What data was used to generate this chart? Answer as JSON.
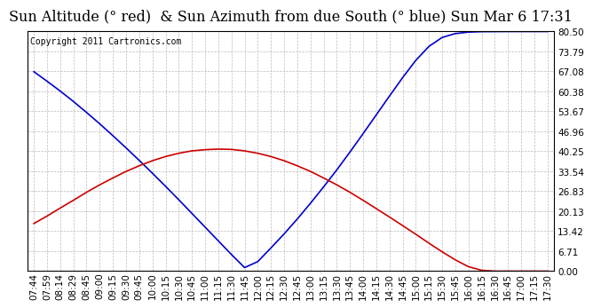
{
  "title": "Sun Altitude (° red)  & Sun Azimuth from due South (° blue) Sun Mar 6 17:31",
  "copyright_text": "Copyright 2011 Cartronics.com",
  "yticks": [
    0.0,
    6.71,
    13.42,
    20.13,
    26.83,
    33.54,
    40.25,
    46.96,
    53.67,
    60.38,
    67.08,
    73.79,
    80.5
  ],
  "ylim": [
    0.0,
    80.5
  ],
  "x_labels": [
    "07:44",
    "07:59",
    "08:14",
    "08:29",
    "08:45",
    "09:00",
    "09:15",
    "09:30",
    "09:45",
    "10:00",
    "10:15",
    "10:30",
    "10:45",
    "11:00",
    "11:15",
    "11:30",
    "11:45",
    "12:00",
    "12:15",
    "12:30",
    "12:45",
    "13:00",
    "13:15",
    "13:30",
    "13:45",
    "14:00",
    "14:15",
    "14:30",
    "14:45",
    "15:00",
    "15:15",
    "15:30",
    "15:45",
    "16:00",
    "16:15",
    "16:30",
    "16:45",
    "17:00",
    "17:15",
    "17:30"
  ],
  "altitude_values": [
    16.0,
    18.5,
    21.2,
    23.8,
    26.5,
    29.0,
    31.3,
    33.5,
    35.4,
    37.1,
    38.5,
    39.6,
    40.4,
    40.8,
    41.0,
    40.9,
    40.4,
    39.6,
    38.5,
    37.1,
    35.4,
    33.5,
    31.3,
    29.0,
    26.5,
    23.8,
    21.0,
    18.2,
    15.3,
    12.4,
    9.4,
    6.5,
    3.8,
    1.5,
    0.3,
    0.0,
    0.0,
    0.0,
    0.0,
    0.0
  ],
  "azimuth_values": [
    67.0,
    63.8,
    60.5,
    57.0,
    53.3,
    49.5,
    45.5,
    41.4,
    37.2,
    32.9,
    28.5,
    24.0,
    19.4,
    14.8,
    10.2,
    5.6,
    1.2,
    3.2,
    7.8,
    12.5,
    17.5,
    22.8,
    28.3,
    34.0,
    40.0,
    46.2,
    52.5,
    58.8,
    65.0,
    70.8,
    75.5,
    78.5,
    79.8,
    80.3,
    80.45,
    80.48,
    80.5,
    80.5,
    80.5,
    80.5
  ],
  "line_color_altitude": "#cc0000",
  "line_color_azimuth": "#0000cc",
  "bg_color": "#ffffff",
  "grid_color": "#bbbbbb",
  "title_fontsize": 11.5,
  "tick_fontsize": 7.5,
  "copyright_fontsize": 7
}
